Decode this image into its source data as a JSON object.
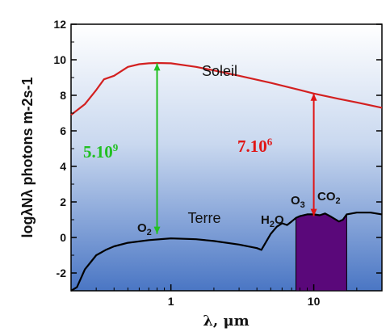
{
  "chart_data": {
    "type": "line",
    "title": "",
    "xlabel": "λ, μm",
    "ylabel": "logλNλ photons m-2s-1",
    "ylim": [
      -3,
      12
    ],
    "xlim": [
      0.2,
      30
    ],
    "x_scale": "log",
    "x_ticks": [
      "1",
      "10"
    ],
    "y_ticks": [
      "-2",
      "0",
      "2",
      "4",
      "6",
      "8",
      "10",
      "12"
    ],
    "colors": {
      "sun": "#d32020",
      "earth": "#000000",
      "band": "#5a087a",
      "green": "#22c022",
      "red": "#e01515"
    },
    "series": [
      {
        "name": "Soleil",
        "x": [
          0.2,
          0.25,
          0.3,
          0.34,
          0.4,
          0.5,
          0.6,
          0.7,
          0.8,
          1.0,
          1.5,
          2,
          3,
          5,
          8,
          10,
          15,
          20,
          30
        ],
        "y": [
          6.9,
          7.5,
          8.3,
          8.9,
          9.1,
          9.6,
          9.75,
          9.8,
          9.82,
          9.8,
          9.6,
          9.4,
          9.1,
          8.7,
          8.3,
          8.1,
          7.8,
          7.6,
          7.3
        ]
      },
      {
        "name": "Terre",
        "x": [
          0.2,
          0.22,
          0.25,
          0.3,
          0.35,
          0.4,
          0.5,
          0.7,
          1.0,
          1.5,
          2,
          3,
          4,
          4.3,
          5,
          5.5,
          6,
          6.5,
          7,
          7.5,
          8,
          9,
          10,
          11,
          12,
          13,
          15,
          16,
          17,
          20,
          25,
          30
        ],
        "y": [
          -3,
          -2.8,
          -1.8,
          -1.0,
          -0.7,
          -0.5,
          -0.3,
          -0.15,
          -0.05,
          -0.1,
          -0.2,
          -0.4,
          -0.6,
          -0.7,
          0.2,
          0.6,
          0.8,
          0.7,
          0.9,
          1.1,
          1.2,
          1.3,
          1.3,
          1.25,
          1.35,
          1.2,
          0.9,
          1.0,
          1.3,
          1.4,
          1.4,
          1.3
        ]
      }
    ],
    "absorption_band": {
      "x_start": 7.5,
      "x_end": 17,
      "y_bottom": -3
    },
    "annotations": [
      {
        "text_main": "5.10",
        "text_sup": "9",
        "color": "green",
        "arrow_x": 0.8,
        "arrow_from": 0.2,
        "arrow_to": 9.8
      },
      {
        "text_main": "7.10",
        "text_sup": "6",
        "color": "red",
        "arrow_x": 10,
        "arrow_from": 1.2,
        "arrow_to": 8.1
      }
    ],
    "molecule_labels": [
      {
        "base": "O",
        "sub": "2"
      },
      {
        "base": "H",
        "sub": "2",
        "tail": "O"
      },
      {
        "base": "O",
        "sub": "3"
      },
      {
        "base": "CO",
        "sub": "2"
      }
    ],
    "curve_labels": {
      "sun": "Soleil",
      "earth": "Terre"
    }
  }
}
